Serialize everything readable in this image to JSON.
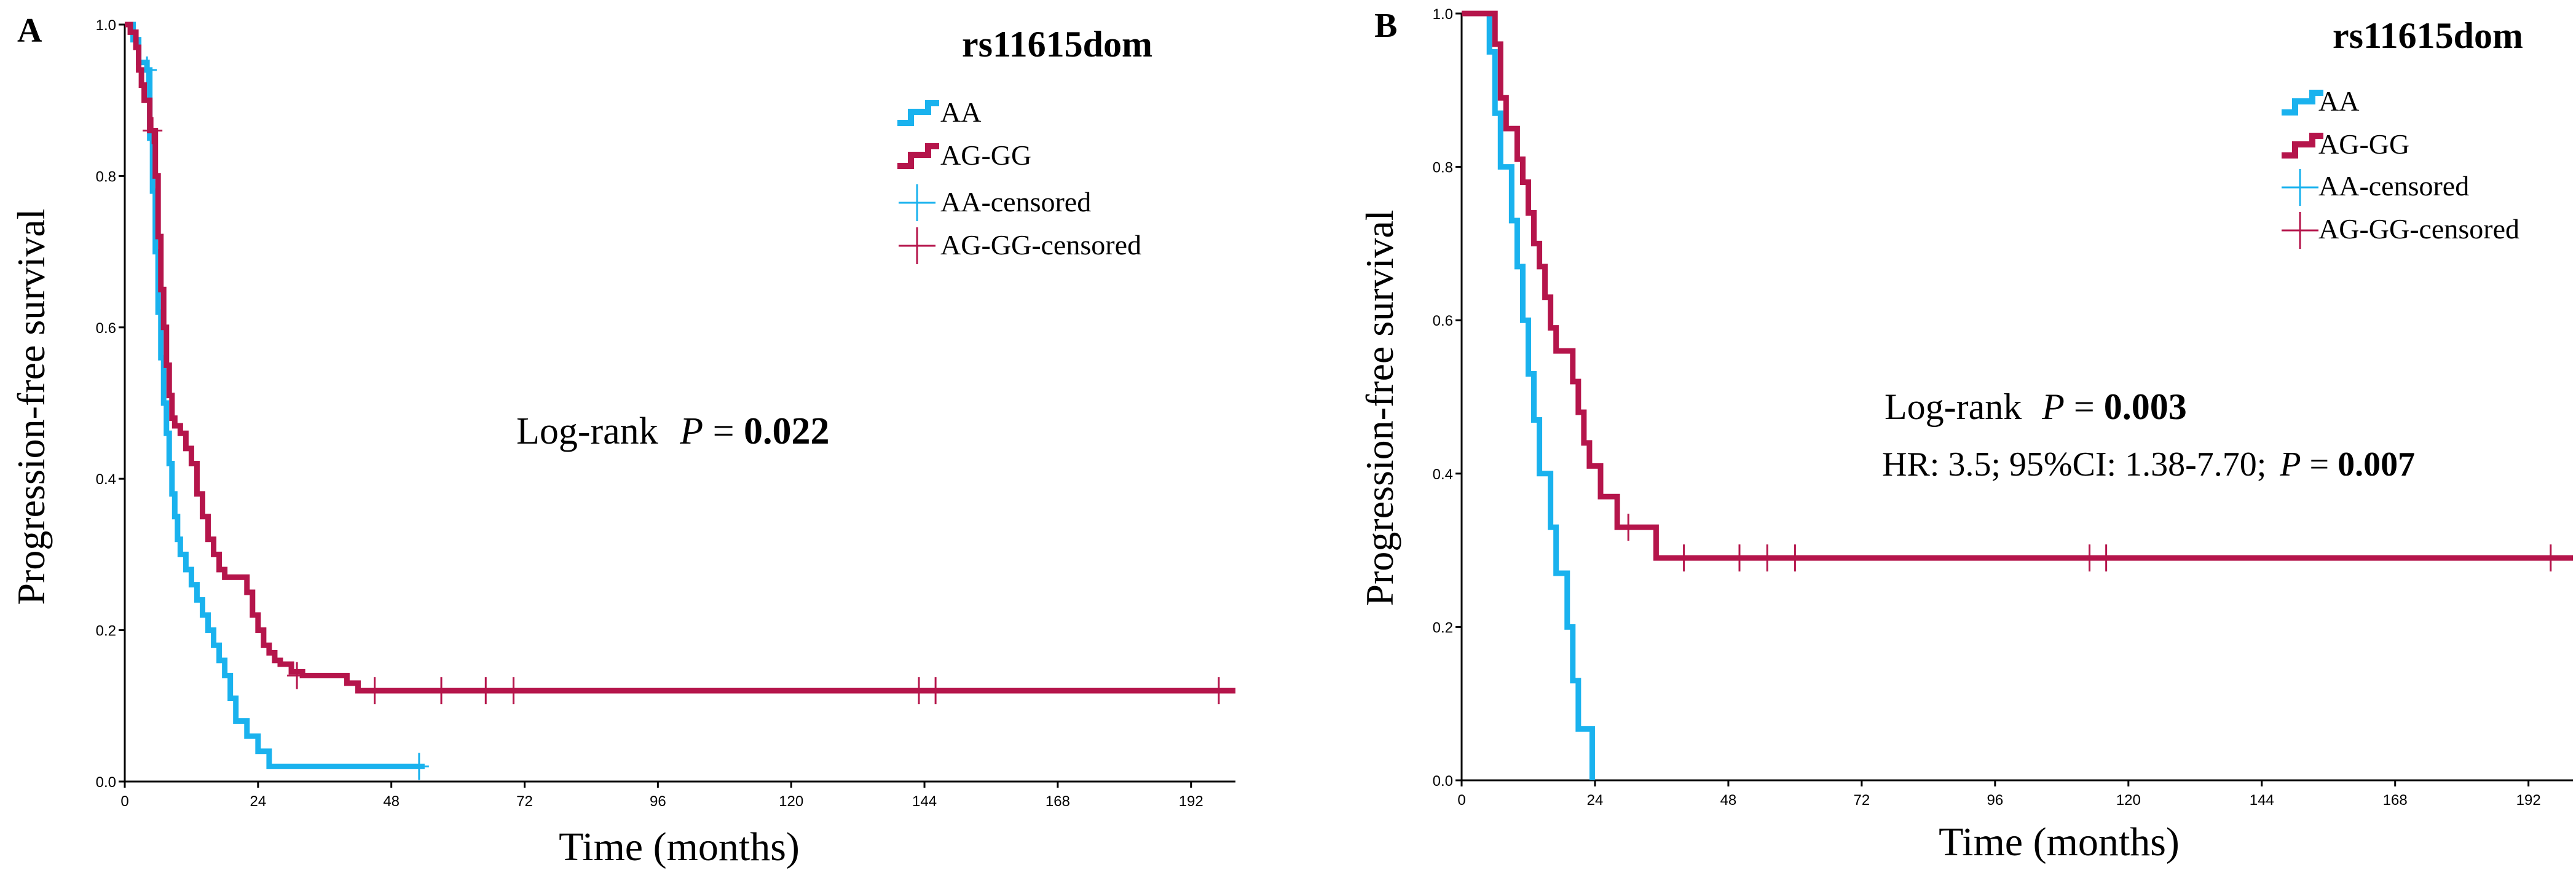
{
  "colors": {
    "aa": "#1ab2ee",
    "ag_gg": "#b5154b",
    "axis": "#000000"
  },
  "chart_data": [
    {
      "panel_label": "A",
      "type": "line",
      "subtype": "kaplan-meier",
      "title": "rs11615dom",
      "xlabel": "Time (months)",
      "ylabel": "Progression-free survival",
      "xlim": [
        0,
        200
      ],
      "ylim": [
        0,
        1
      ],
      "xticks": [
        "0",
        "24",
        "48",
        "72",
        "96",
        "120",
        "144",
        "168",
        "192"
      ],
      "xtick_values": [
        0,
        24,
        48,
        72,
        96,
        120,
        144,
        168,
        192
      ],
      "yticks": [
        "0.0",
        "0.2",
        "0.4",
        "0.6",
        "0.8",
        "1.0"
      ],
      "ytick_values": [
        0,
        0.2,
        0.4,
        0.6,
        0.8,
        1.0
      ],
      "legend": [
        "AA",
        "AG-GG",
        "AA-censored",
        "AG-GG-censored"
      ],
      "annotation": {
        "prefix": "Log-rank ",
        "p_label": "P",
        "eq": " = ",
        "p_value": "0.022"
      },
      "series": [
        {
          "name": "AA",
          "color_key": "aa",
          "steps": [
            [
              0,
              1.0
            ],
            [
              1.5,
              0.98
            ],
            [
              2.5,
              0.95
            ],
            [
              4,
              0.94
            ],
            [
              4.5,
              0.85
            ],
            [
              5,
              0.78
            ],
            [
              5.5,
              0.7
            ],
            [
              6,
              0.62
            ],
            [
              6.5,
              0.56
            ],
            [
              7,
              0.5
            ],
            [
              7.5,
              0.46
            ],
            [
              8,
              0.42
            ],
            [
              8.5,
              0.38
            ],
            [
              9,
              0.35
            ],
            [
              9.5,
              0.32
            ],
            [
              10,
              0.3
            ],
            [
              11,
              0.28
            ],
            [
              12,
              0.26
            ],
            [
              13,
              0.24
            ],
            [
              14,
              0.22
            ],
            [
              15,
              0.2
            ],
            [
              16,
              0.18
            ],
            [
              17,
              0.16
            ],
            [
              18,
              0.14
            ],
            [
              19,
              0.11
            ],
            [
              20,
              0.08
            ],
            [
              22,
              0.06
            ],
            [
              24,
              0.04
            ],
            [
              26,
              0.02
            ],
            [
              54,
              0.02
            ]
          ],
          "censored": [
            [
              4,
              0.94
            ],
            [
              53,
              0.02
            ]
          ]
        },
        {
          "name": "AG-GG",
          "color_key": "ag_gg",
          "steps": [
            [
              0,
              1.0
            ],
            [
              1,
              0.99
            ],
            [
              2,
              0.97
            ],
            [
              2.5,
              0.94
            ],
            [
              3,
              0.92
            ],
            [
              3.5,
              0.9
            ],
            [
              4.5,
              0.86
            ],
            [
              5.5,
              0.8
            ],
            [
              6,
              0.72
            ],
            [
              6.5,
              0.65
            ],
            [
              7,
              0.6
            ],
            [
              7.5,
              0.55
            ],
            [
              8,
              0.51
            ],
            [
              8.5,
              0.48
            ],
            [
              9,
              0.47
            ],
            [
              10,
              0.46
            ],
            [
              11,
              0.44
            ],
            [
              12,
              0.42
            ],
            [
              13,
              0.38
            ],
            [
              14,
              0.35
            ],
            [
              15,
              0.32
            ],
            [
              16,
              0.3
            ],
            [
              17,
              0.28
            ],
            [
              18,
              0.27
            ],
            [
              22,
              0.25
            ],
            [
              23,
              0.22
            ],
            [
              24,
              0.2
            ],
            [
              25,
              0.18
            ],
            [
              26,
              0.17
            ],
            [
              27,
              0.16
            ],
            [
              28,
              0.155
            ],
            [
              30,
              0.145
            ],
            [
              32,
              0.14
            ],
            [
              40,
              0.13
            ],
            [
              42,
              0.12
            ],
            [
              200,
              0.12
            ]
          ],
          "censored": [
            [
              5,
              0.86
            ],
            [
              31,
              0.14
            ],
            [
              45,
              0.12
            ],
            [
              57,
              0.12
            ],
            [
              65,
              0.12
            ],
            [
              70,
              0.12
            ],
            [
              143,
              0.12
            ],
            [
              146,
              0.12
            ],
            [
              197,
              0.12
            ]
          ]
        }
      ]
    },
    {
      "panel_label": "B",
      "type": "line",
      "subtype": "kaplan-meier",
      "title": "rs11615dom",
      "xlabel": "Time (months)",
      "ylabel": "Progression-free survival",
      "xlim": [
        0,
        200
      ],
      "ylim": [
        0,
        1
      ],
      "xticks": [
        "0",
        "24",
        "48",
        "72",
        "96",
        "120",
        "144",
        "168",
        "192"
      ],
      "xtick_values": [
        0,
        24,
        48,
        72,
        96,
        120,
        144,
        168,
        192
      ],
      "yticks": [
        "0.0",
        "0.2",
        "0.4",
        "0.6",
        "0.8",
        "1.0"
      ],
      "ytick_values": [
        0,
        0.2,
        0.4,
        0.6,
        0.8,
        1.0
      ],
      "legend": [
        "AA",
        "AG-GG",
        "AA-censored",
        "AG-GG-censored"
      ],
      "annotation": {
        "prefix": "Log-rank ",
        "p_label": "P",
        "eq": "  = ",
        "p_value": "0.003"
      },
      "annotation2": {
        "prefix": "HR: 3.5; 95%CI: 1.38-7.70; ",
        "p_label": "P",
        "eq": " = ",
        "p_value": "0.007"
      },
      "series": [
        {
          "name": "AA",
          "color_key": "aa",
          "steps": [
            [
              0,
              1.0
            ],
            [
              5,
              0.95
            ],
            [
              6,
              0.87
            ],
            [
              7,
              0.8
            ],
            [
              9,
              0.73
            ],
            [
              10,
              0.67
            ],
            [
              11,
              0.6
            ],
            [
              12,
              0.53
            ],
            [
              13,
              0.47
            ],
            [
              14,
              0.4
            ],
            [
              16,
              0.33
            ],
            [
              17,
              0.27
            ],
            [
              19,
              0.2
            ],
            [
              20,
              0.13
            ],
            [
              21,
              0.067
            ],
            [
              23,
              0.067
            ],
            [
              23.5,
              0.0
            ]
          ],
          "censored": []
        },
        {
          "name": "AG-GG",
          "color_key": "ag_gg",
          "steps": [
            [
              0,
              1.0
            ],
            [
              6,
              0.96
            ],
            [
              7,
              0.89
            ],
            [
              8,
              0.85
            ],
            [
              10,
              0.81
            ],
            [
              11,
              0.78
            ],
            [
              12,
              0.74
            ],
            [
              13,
              0.7
            ],
            [
              14,
              0.67
            ],
            [
              15,
              0.63
            ],
            [
              16,
              0.59
            ],
            [
              17,
              0.56
            ],
            [
              20,
              0.52
            ],
            [
              21,
              0.48
            ],
            [
              22,
              0.44
            ],
            [
              23,
              0.41
            ],
            [
              25,
              0.37
            ],
            [
              28,
              0.33
            ],
            [
              35,
              0.29
            ],
            [
              200,
              0.29
            ]
          ],
          "censored": [
            [
              30,
              0.33
            ],
            [
              40,
              0.29
            ],
            [
              50,
              0.29
            ],
            [
              55,
              0.29
            ],
            [
              60,
              0.29
            ],
            [
              113,
              0.29
            ],
            [
              116,
              0.29
            ],
            [
              196,
              0.29
            ]
          ]
        }
      ]
    }
  ]
}
